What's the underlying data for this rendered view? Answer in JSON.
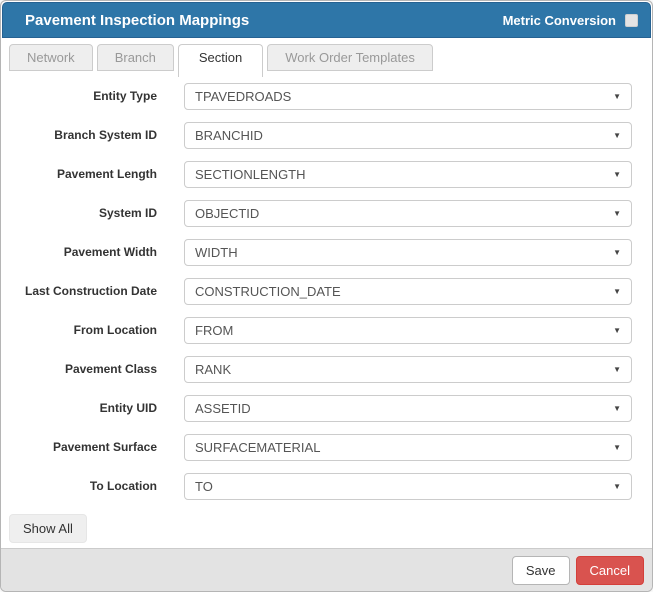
{
  "header": {
    "title": "Pavement Inspection Mappings",
    "metric_conversion_label": "Metric Conversion",
    "metric_conversion_checked": false
  },
  "tabs": [
    {
      "label": "Network",
      "active": false
    },
    {
      "label": "Branch",
      "active": false
    },
    {
      "label": "Section",
      "active": true
    },
    {
      "label": "Work Order Templates",
      "active": false
    }
  ],
  "form": {
    "rows": [
      {
        "label": "Entity Type",
        "value": "TPAVEDROADS"
      },
      {
        "label": "Branch System ID",
        "value": "BRANCHID"
      },
      {
        "label": "Pavement Length",
        "value": "SECTIONLENGTH"
      },
      {
        "label": "System ID",
        "value": "OBJECTID"
      },
      {
        "label": "Pavement Width",
        "value": "WIDTH"
      },
      {
        "label": "Last Construction Date",
        "value": "CONSTRUCTION_DATE"
      },
      {
        "label": "From Location",
        "value": "FROM"
      },
      {
        "label": "Pavement Class",
        "value": "RANK"
      },
      {
        "label": "Entity UID",
        "value": "ASSETID"
      },
      {
        "label": "Pavement Surface",
        "value": "SURFACEMATERIAL"
      },
      {
        "label": "To Location",
        "value": "TO"
      }
    ]
  },
  "show_all_label": "Show All",
  "footer": {
    "save_label": "Save",
    "cancel_label": "Cancel"
  },
  "icons": {
    "dropdown_arrow": "▼"
  },
  "colors": {
    "header_bg": "#2e76a8",
    "header_border": "#266292",
    "cancel_bg": "#d9534f",
    "cancel_border": "#d43f3a",
    "footer_bg": "#e3e3e3",
    "tab_inactive_bg": "#eeeeee",
    "tab_inactive_text": "#999999",
    "select_border": "#cccccc",
    "select_text": "#555555",
    "label_text": "#333333"
  }
}
